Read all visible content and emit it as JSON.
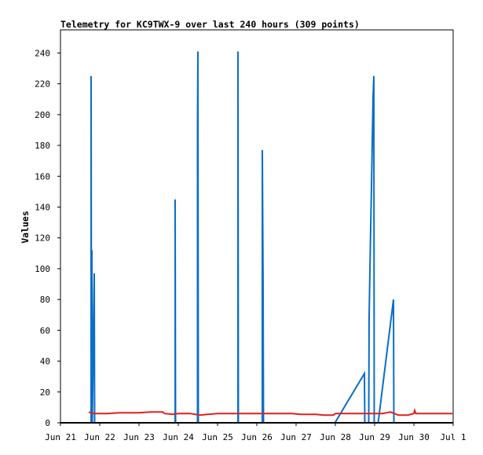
{
  "chart_data": {
    "type": "line",
    "title": "Telemetry for KC9TWX-9 over last 240 hours (309 points)",
    "ylabel": "Values",
    "xlabel": "",
    "x_unit": "days since Jun 21",
    "x_range": [
      0,
      10
    ],
    "ylim": [
      0,
      255
    ],
    "y_ticks": [
      0,
      20,
      40,
      60,
      80,
      100,
      120,
      140,
      160,
      180,
      200,
      220,
      240
    ],
    "x_ticks": [
      {
        "x": 0,
        "label": "Jun 21"
      },
      {
        "x": 1,
        "label": "Jun 22"
      },
      {
        "x": 2,
        "label": "Jun 23"
      },
      {
        "x": 3,
        "label": "Jun 24"
      },
      {
        "x": 4,
        "label": "Jun 25"
      },
      {
        "x": 5,
        "label": "Jun 26"
      },
      {
        "x": 6,
        "label": "Jun 27"
      },
      {
        "x": 7,
        "label": "Jun 28"
      },
      {
        "x": 8,
        "label": "Jun 29"
      },
      {
        "x": 9,
        "label": "Jun 30"
      },
      {
        "x": 10,
        "label": "Jul 1"
      }
    ],
    "grid": false,
    "legend": "none",
    "series": [
      {
        "color": "#0a6ec8",
        "points": [
          [
            0.78,
            0
          ],
          [
            0.78,
            225
          ],
          [
            0.79,
            0
          ],
          [
            0.8,
            112
          ],
          [
            0.81,
            0
          ],
          [
            0.86,
            97
          ],
          [
            0.87,
            0
          ],
          [
            2.92,
            0
          ],
          [
            2.92,
            145
          ],
          [
            2.93,
            0
          ],
          [
            3.49,
            0
          ],
          [
            3.49,
            193
          ],
          [
            3.5,
            241
          ],
          [
            3.51,
            0
          ],
          [
            4.52,
            0
          ],
          [
            4.52,
            241
          ],
          [
            4.53,
            0
          ],
          [
            5.14,
            0
          ],
          [
            5.14,
            177
          ],
          [
            5.16,
            89
          ],
          [
            5.17,
            0
          ],
          [
            6.99,
            0
          ],
          [
            7.74,
            32
          ],
          [
            7.75,
            0
          ],
          [
            7.85,
            0
          ],
          [
            7.86,
            69
          ],
          [
            7.88,
            98
          ],
          [
            7.9,
            127
          ],
          [
            7.92,
            153
          ],
          [
            7.94,
            182
          ],
          [
            7.96,
            211
          ],
          [
            7.98,
            225
          ],
          [
            7.99,
            0
          ],
          [
            8.09,
            0
          ],
          [
            8.48,
            80
          ],
          [
            8.49,
            0
          ]
        ]
      },
      {
        "color": "#e0201c",
        "points": [
          [
            0.72,
            7
          ],
          [
            0.85,
            6
          ],
          [
            1.2,
            6
          ],
          [
            1.5,
            6.5
          ],
          [
            2.0,
            6.5
          ],
          [
            2.3,
            7
          ],
          [
            2.6,
            7
          ],
          [
            2.65,
            6
          ],
          [
            2.85,
            5.5
          ],
          [
            3.0,
            6
          ],
          [
            3.3,
            6
          ],
          [
            3.55,
            5
          ],
          [
            3.75,
            5.5
          ],
          [
            4.0,
            6
          ],
          [
            4.5,
            6
          ],
          [
            5.0,
            6
          ],
          [
            5.5,
            6
          ],
          [
            5.9,
            6
          ],
          [
            6.1,
            5.5
          ],
          [
            6.5,
            5.5
          ],
          [
            6.7,
            5
          ],
          [
            6.95,
            5
          ],
          [
            7.0,
            6
          ],
          [
            7.5,
            6
          ],
          [
            7.8,
            6
          ],
          [
            8.0,
            6
          ],
          [
            8.2,
            6
          ],
          [
            8.4,
            7
          ],
          [
            8.5,
            6
          ],
          [
            8.6,
            5
          ],
          [
            8.85,
            5
          ],
          [
            9.0,
            6
          ],
          [
            9.02,
            8
          ],
          [
            9.05,
            6
          ],
          [
            9.5,
            6
          ],
          [
            9.98,
            6
          ]
        ]
      }
    ]
  }
}
